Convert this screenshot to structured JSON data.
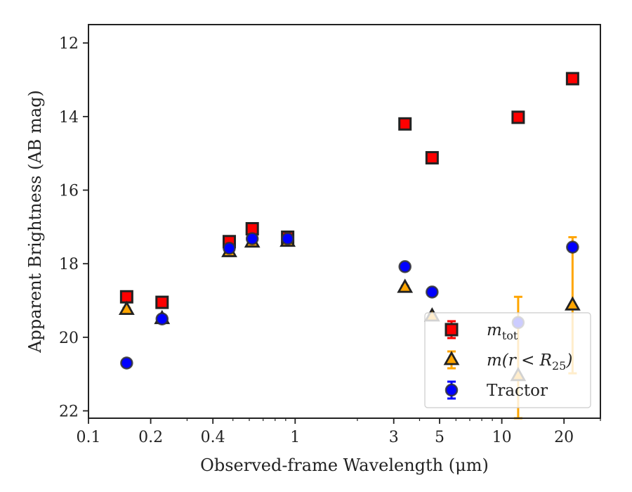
{
  "chart_data": {
    "type": "scatter",
    "xlabel": "Observed-frame Wavelength (μm)",
    "ylabel": "Apparent Brightness (AB mag)",
    "x_scale": "log",
    "xlim": [
      0.1,
      30
    ],
    "ylim": [
      22.2,
      11.5
    ],
    "y_inverted": true,
    "x_ticks": [
      {
        "value": 0.1,
        "label": "0.1"
      },
      {
        "value": 0.2,
        "label": "0.2"
      },
      {
        "value": 0.4,
        "label": "0.4"
      },
      {
        "value": 1,
        "label": "1"
      },
      {
        "value": 3,
        "label": "3"
      },
      {
        "value": 5,
        "label": "5"
      },
      {
        "value": 10,
        "label": "10"
      },
      {
        "value": 20,
        "label": "20"
      }
    ],
    "x_minor_ticks": [
      0.3,
      0.5,
      0.6,
      0.7,
      0.8,
      0.9,
      2,
      4,
      6,
      7,
      8,
      9,
      30
    ],
    "y_ticks": [
      {
        "value": 12,
        "label": "12"
      },
      {
        "value": 14,
        "label": "14"
      },
      {
        "value": 16,
        "label": "16"
      },
      {
        "value": 18,
        "label": "18"
      },
      {
        "value": 20,
        "label": "20"
      },
      {
        "value": 22,
        "label": "22"
      }
    ],
    "legend": {
      "placement": "lower-right",
      "entries": [
        {
          "series": "m_tot",
          "main": "m",
          "sub": "tot",
          "tail": ""
        },
        {
          "series": "m_r25",
          "main": "m(r < R",
          "sub": "25",
          "tail": ")"
        },
        {
          "series": "tractor",
          "main": "Tractor",
          "sub": "",
          "tail": ""
        }
      ]
    },
    "series": [
      {
        "id": "m_tot",
        "marker": "square",
        "color": "#ff0000",
        "edge": "#222222",
        "errcolor": "#ff0000",
        "points": [
          {
            "x": 0.153,
            "y": 18.9,
            "err": 0.05
          },
          {
            "x": 0.227,
            "y": 19.05,
            "err": 0.05
          },
          {
            "x": 0.48,
            "y": 17.4,
            "err": 0.05
          },
          {
            "x": 0.62,
            "y": 17.05,
            "err": 0.05
          },
          {
            "x": 0.92,
            "y": 17.28,
            "err": 0.08
          },
          {
            "x": 3.4,
            "y": 14.2,
            "err": 0.03
          },
          {
            "x": 4.6,
            "y": 15.12,
            "err": 0.03
          },
          {
            "x": 12.0,
            "y": 14.02,
            "err": 0.03
          },
          {
            "x": 22.0,
            "y": 12.97,
            "err": 0.03
          }
        ]
      },
      {
        "id": "m_r25",
        "marker": "triangle",
        "color": "#ffa500",
        "edge": "#222222",
        "errcolor": "#ffa500",
        "points": [
          {
            "x": 0.153,
            "y": 19.25,
            "err": 0.05
          },
          {
            "x": 0.227,
            "y": 19.5,
            "err": 0.05
          },
          {
            "x": 0.48,
            "y": 17.68,
            "err": 0.05
          },
          {
            "x": 0.62,
            "y": 17.42,
            "err": 0.05
          },
          {
            "x": 0.92,
            "y": 17.4,
            "err": 0.05
          },
          {
            "x": 3.4,
            "y": 18.65,
            "err": 0.05
          },
          {
            "x": 4.6,
            "y": 19.43,
            "err": 0.05
          },
          {
            "x": 12.0,
            "y": 21.05,
            "err": 2.15
          },
          {
            "x": 22.0,
            "y": 19.13,
            "err": 1.85
          }
        ]
      },
      {
        "id": "tractor",
        "marker": "circle",
        "color": "#0000ff",
        "edge": "#333333",
        "errcolor": "#0000ff",
        "points": [
          {
            "x": 0.153,
            "y": 20.7,
            "err": 0.05
          },
          {
            "x": 0.227,
            "y": 19.5,
            "err": 0.05
          },
          {
            "x": 0.48,
            "y": 17.58,
            "err": 0.05
          },
          {
            "x": 0.62,
            "y": 17.32,
            "err": 0.05
          },
          {
            "x": 0.92,
            "y": 17.32,
            "err": 0.05
          },
          {
            "x": 3.4,
            "y": 18.08,
            "err": 0.05
          },
          {
            "x": 4.6,
            "y": 18.77,
            "err": 0.05
          },
          {
            "x": 12.0,
            "y": 19.6,
            "err": 0.05
          },
          {
            "x": 22.0,
            "y": 17.55,
            "err": 0.05
          }
        ]
      }
    ]
  }
}
